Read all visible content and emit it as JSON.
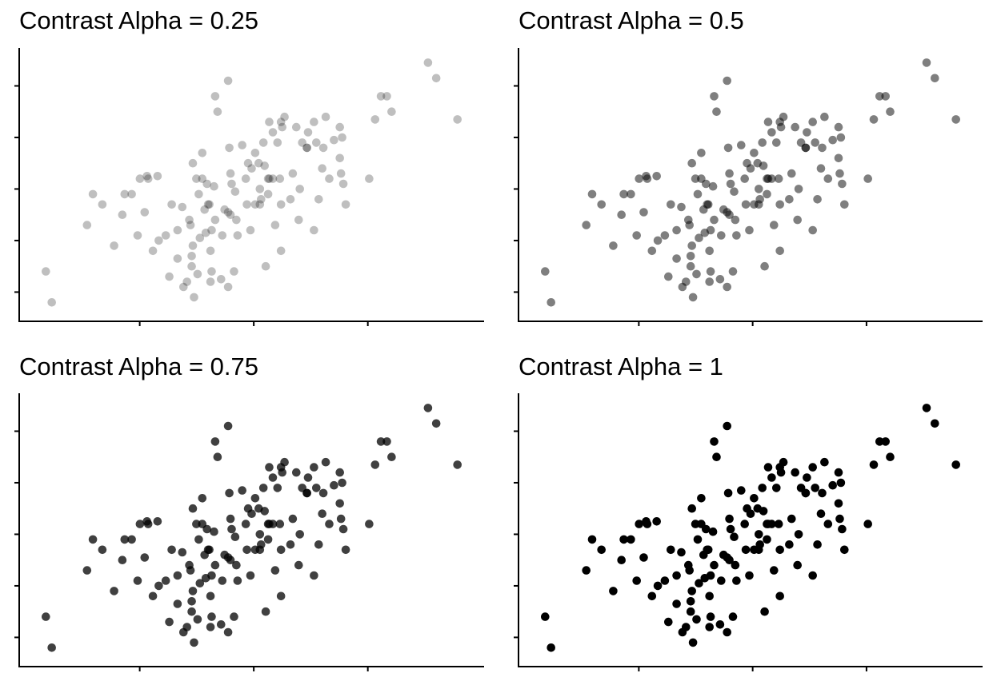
{
  "chart_data": [
    {
      "type": "scatter",
      "title": "Contrast Alpha = 0.25",
      "alpha": 0.25,
      "xlim": [
        -0.15,
        3.1
      ],
      "ylim": [
        -0.6,
        4.2
      ],
      "x_ticks": [
        0.4,
        1.4,
        2.4
      ],
      "y_ticks": [
        0,
        1,
        2,
        3,
        4
      ],
      "grid": false,
      "point_color": "#000000",
      "points_ref": "shared_points"
    },
    {
      "type": "scatter",
      "title": "Contrast Alpha = 0.5",
      "alpha": 0.5,
      "xlim": [
        -0.15,
        3.1
      ],
      "ylim": [
        -0.6,
        4.2
      ],
      "x_ticks": [
        0.4,
        1.4,
        2.4
      ],
      "y_ticks": [
        0,
        1,
        2,
        3,
        4
      ],
      "grid": false,
      "point_color": "#000000",
      "points_ref": "shared_points"
    },
    {
      "type": "scatter",
      "title": "Contrast Alpha = 0.75",
      "alpha": 0.75,
      "xlim": [
        -0.15,
        3.1
      ],
      "ylim": [
        -0.6,
        4.2
      ],
      "x_ticks": [
        0.4,
        1.4,
        2.4
      ],
      "y_ticks": [
        0,
        1,
        2,
        3,
        4
      ],
      "grid": false,
      "point_color": "#000000",
      "points_ref": "shared_points"
    },
    {
      "type": "scatter",
      "title": "Contrast Alpha = 1",
      "alpha": 1,
      "xlim": [
        -0.15,
        3.1
      ],
      "ylim": [
        -0.6,
        4.2
      ],
      "x_ticks": [
        0.4,
        1.4,
        2.4
      ],
      "y_ticks": [
        0,
        1,
        2,
        3,
        4
      ],
      "grid": false,
      "point_color": "#000000",
      "points_ref": "shared_points"
    }
  ],
  "shared_points": [
    [
      0.0,
      0.4
    ],
    [
      0.05,
      -0.2
    ],
    [
      0.35,
      1.3
    ],
    [
      0.4,
      1.9
    ],
    [
      0.48,
      1.7
    ],
    [
      0.58,
      0.9
    ],
    [
      0.65,
      1.5
    ],
    [
      0.67,
      1.9
    ],
    [
      0.73,
      1.9
    ],
    [
      0.78,
      1.1
    ],
    [
      0.8,
      2.2
    ],
    [
      0.84,
      1.55
    ],
    [
      0.86,
      2.25
    ],
    [
      0.87,
      2.2
    ],
    [
      0.91,
      0.8
    ],
    [
      0.95,
      2.25
    ],
    [
      0.96,
      1.0
    ],
    [
      1.02,
      1.1
    ],
    [
      1.05,
      0.3
    ],
    [
      1.07,
      1.7
    ],
    [
      1.12,
      1.2
    ],
    [
      1.12,
      0.65
    ],
    [
      1.16,
      1.65
    ],
    [
      1.17,
      0.1
    ],
    [
      1.2,
      0.2
    ],
    [
      1.22,
      1.4
    ],
    [
      1.24,
      0.5
    ],
    [
      1.26,
      -0.1
    ],
    [
      1.23,
      1.3
    ],
    [
      1.24,
      0.7
    ],
    [
      1.25,
      0.9
    ],
    [
      1.25,
      2.5
    ],
    [
      1.28,
      2.2
    ],
    [
      1.3,
      1.9
    ],
    [
      1.31,
      1.05
    ],
    [
      1.29,
      0.35
    ],
    [
      1.33,
      2.7
    ],
    [
      1.33,
      2.2
    ],
    [
      1.35,
      1.6
    ],
    [
      1.38,
      1.7
    ],
    [
      1.37,
      2.1
    ],
    [
      1.36,
      1.15
    ],
    [
      1.39,
      1.7
    ],
    [
      1.4,
      0.8
    ],
    [
      1.41,
      1.2
    ],
    [
      1.41,
      0.4
    ],
    [
      1.4,
      0.2
    ],
    [
      1.43,
      2.05
    ],
    [
      1.44,
      1.4
    ],
    [
      1.44,
      3.8
    ],
    [
      1.46,
      3.5
    ],
    [
      1.49,
      0.25
    ],
    [
      1.5,
      1.1
    ],
    [
      1.52,
      1.6
    ],
    [
      1.55,
      0.1
    ],
    [
      1.55,
      4.1
    ],
    [
      1.55,
      1.55
    ],
    [
      1.56,
      2.8
    ],
    [
      1.57,
      2.3
    ],
    [
      1.58,
      2.1
    ],
    [
      1.57,
      1.5
    ],
    [
      1.6,
      0.4
    ],
    [
      1.61,
      1.95
    ],
    [
      1.62,
      1.4
    ],
    [
      1.63,
      1.1
    ],
    [
      1.67,
      2.85
    ],
    [
      1.7,
      2.2
    ],
    [
      1.71,
      1.7
    ],
    [
      1.72,
      2.5
    ],
    [
      1.75,
      2.4
    ],
    [
      1.74,
      1.2
    ],
    [
      1.78,
      1.7
    ],
    [
      1.78,
      2.7
    ],
    [
      1.81,
      2.5
    ],
    [
      1.82,
      1.7
    ],
    [
      1.82,
      2.0
    ],
    [
      1.83,
      1.8
    ],
    [
      1.85,
      2.9
    ],
    [
      1.86,
      2.45
    ],
    [
      1.87,
      0.5
    ],
    [
      1.89,
      2.2
    ],
    [
      1.89,
      1.9
    ],
    [
      1.9,
      3.3
    ],
    [
      1.9,
      2.2
    ],
    [
      1.93,
      2.2
    ],
    [
      1.93,
      3.1
    ],
    [
      1.95,
      1.3
    ],
    [
      1.97,
      2.9
    ],
    [
      1.99,
      2.2
    ],
    [
      2.0,
      1.7
    ],
    [
      2.0,
      3.3
    ],
    [
      2.0,
      0.8
    ],
    [
      2.01,
      3.2
    ],
    [
      2.03,
      3.4
    ],
    [
      2.08,
      1.8
    ],
    [
      2.1,
      2.3
    ],
    [
      2.13,
      3.2
    ],
    [
      2.15,
      1.4
    ],
    [
      2.16,
      2.0
    ],
    [
      2.18,
      2.9
    ],
    [
      2.22,
      2.8
    ],
    [
      2.22,
      2.8
    ],
    [
      2.23,
      3.1
    ],
    [
      2.28,
      1.2
    ],
    [
      2.28,
      3.3
    ],
    [
      2.3,
      2.9
    ],
    [
      2.32,
      1.8
    ],
    [
      2.35,
      2.4
    ],
    [
      2.36,
      2.8
    ],
    [
      2.38,
      3.4
    ],
    [
      2.41,
      2.2
    ],
    [
      2.45,
      2.95
    ],
    [
      2.5,
      2.6
    ],
    [
      2.5,
      3.2
    ],
    [
      2.51,
      2.3
    ],
    [
      2.52,
      3.0
    ],
    [
      2.53,
      2.1
    ],
    [
      2.55,
      1.7
    ],
    [
      2.75,
      2.2
    ],
    [
      2.8,
      3.35
    ],
    [
      2.85,
      3.8
    ],
    [
      2.9,
      3.8
    ],
    [
      2.94,
      3.5
    ],
    [
      3.25,
      4.45
    ],
    [
      3.32,
      4.15
    ],
    [
      3.5,
      3.35
    ]
  ]
}
